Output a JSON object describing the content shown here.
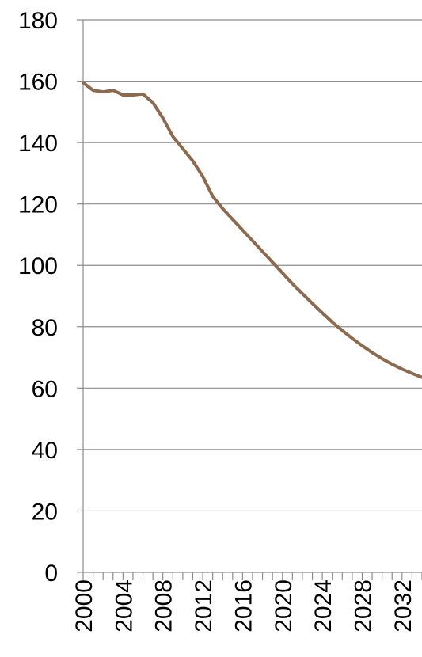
{
  "chart_data": {
    "type": "line",
    "title": "",
    "xlabel": "",
    "ylabel": "",
    "xlim": [
      2000,
      2034
    ],
    "ylim": [
      0,
      180
    ],
    "y_ticks": [
      0,
      20,
      40,
      60,
      80,
      100,
      120,
      140,
      160,
      180
    ],
    "x_tick_labels": [
      "2000",
      "2004",
      "2008",
      "2012",
      "2016",
      "2020",
      "2024",
      "2028",
      "2032"
    ],
    "grid": "horizontal",
    "legend": "none",
    "series": [
      {
        "color": "#8b6a4f",
        "x": [
          2000,
          2001,
          2002,
          2003,
          2004,
          2005,
          2006,
          2007,
          2008,
          2009,
          2010,
          2011,
          2012,
          2013,
          2014,
          2015,
          2016,
          2017,
          2018,
          2019,
          2020,
          2021,
          2022,
          2023,
          2024,
          2025,
          2026,
          2027,
          2028,
          2029,
          2030,
          2031,
          2032,
          2033,
          2034
        ],
        "y": [
          159.5,
          157,
          156.5,
          157,
          155.5,
          155.5,
          155.8,
          153,
          148,
          142,
          138,
          134,
          129,
          122.5,
          118.5,
          115,
          111.5,
          108,
          104.5,
          101,
          97.5,
          94,
          90.8,
          87.6,
          84.5,
          81.5,
          78.8,
          76.2,
          73.8,
          71.6,
          69.6,
          67.8,
          66.2,
          64.8,
          63.5
        ]
      }
    ]
  }
}
